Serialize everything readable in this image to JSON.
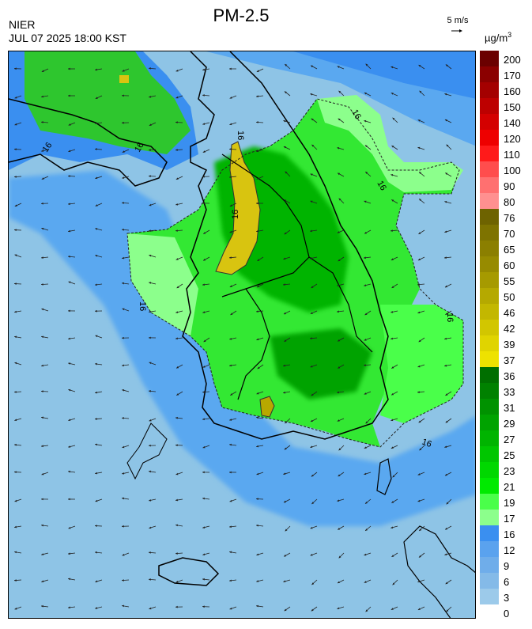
{
  "header": {
    "org": "NIER",
    "datetime": "JUL 07 2025 18:00 KST",
    "title": "PM-2.5",
    "wind_ref_label": "5 m/s",
    "unit_base": "µg/m",
    "unit_exp": "3"
  },
  "map": {
    "contour_label": "16",
    "contour_labels": [
      "16",
      "16",
      "16",
      "16",
      "16",
      "16",
      "16",
      "16",
      "16"
    ],
    "wind_direction_general": "north-westward near coasts, southward over land"
  },
  "colorbar": {
    "labels": [
      "200",
      "170",
      "160",
      "150",
      "140",
      "120",
      "110",
      "100",
      "90",
      "80",
      "76",
      "70",
      "65",
      "60",
      "55",
      "50",
      "46",
      "42",
      "39",
      "37",
      "36",
      "33",
      "31",
      "29",
      "27",
      "25",
      "23",
      "21",
      "19",
      "17",
      "16",
      "12",
      "9",
      "6",
      "3",
      "0"
    ],
    "colors": [
      "#6b0000",
      "#8b0000",
      "#a40000",
      "#bd0000",
      "#d40000",
      "#ee0000",
      "#ff1a1a",
      "#ff4d4d",
      "#ff7070",
      "#ff9090",
      "#6e6300",
      "#7e7300",
      "#8b7f00",
      "#978b00",
      "#a69a00",
      "#b5a900",
      "#c3b700",
      "#d2c600",
      "#e0d400",
      "#eee200",
      "#006f00",
      "#008100",
      "#009200",
      "#00a300",
      "#00b400",
      "#00c600",
      "#00d800",
      "#00ea00",
      "#4aff4a",
      "#8cff8c",
      "#3a8ff0",
      "#5aa2ee",
      "#6fadea",
      "#84bae8",
      "#9ccaea"
    ]
  }
}
